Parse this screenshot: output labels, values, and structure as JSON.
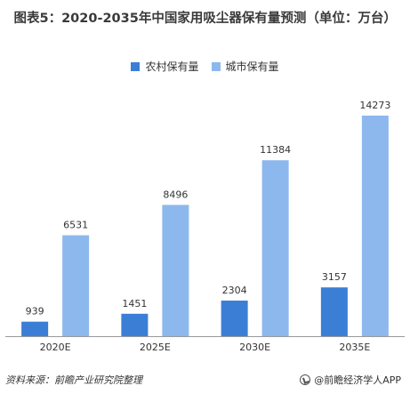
{
  "chart_title": "图表5：2020-2035年中国家用吸尘器保有量预测（单位：万台）",
  "chart_data": {
    "type": "bar",
    "title": "图表5：2020-2035年中国家用吸尘器保有量预测（单位：万台）",
    "categories": [
      "2020E",
      "2025E",
      "2030E",
      "2035E"
    ],
    "series": [
      {
        "name": "农村保有量",
        "values": [
          939,
          1451,
          2304,
          3157
        ],
        "color": "#3a7fd5"
      },
      {
        "name": "城市保有量",
        "values": [
          6531,
          8496,
          11384,
          14273
        ],
        "color": "#8db8ee"
      }
    ],
    "ylim": [
      0,
      16000
    ],
    "xlabel": "",
    "ylabel": "",
    "grid": false,
    "legend_position": "top-center"
  },
  "footer": {
    "source": "资料来源：前瞻产业研究院整理",
    "brand": "@前瞻经济学人APP"
  }
}
